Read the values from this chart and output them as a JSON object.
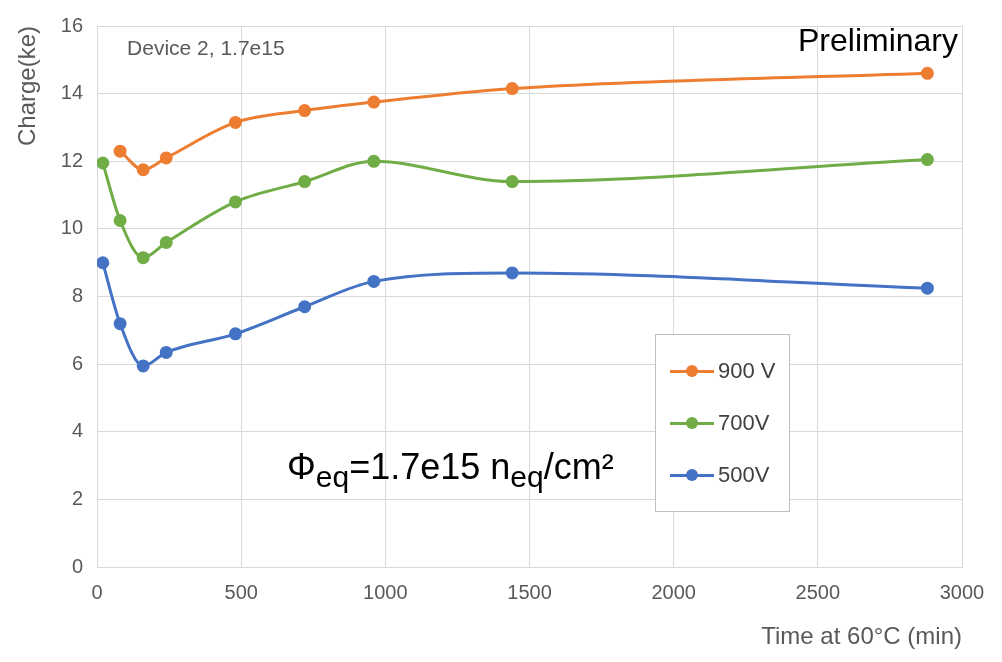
{
  "chart_data": {
    "type": "line",
    "xlabel": "Time at 60°C (min)",
    "ylabel": "Charge(ke)",
    "annotations": [
      "Device 2, 1.7e15",
      "Preliminary",
      "Φ$_{eq}$=1.7e15 n$_{eq}$/cm²"
    ],
    "xlim": [
      0,
      3000
    ],
    "xticks": [
      0,
      500,
      1000,
      1500,
      2000,
      2500,
      3000
    ],
    "ylim": [
      0,
      16
    ],
    "yticks": [
      0,
      2,
      4,
      6,
      8,
      10,
      12,
      14,
      16
    ],
    "grid": true,
    "legend": "right",
    "marker": "circle",
    "line_style": "solid",
    "series": [
      {
        "name": "900 V",
        "color": "#ed7d31",
        "x": [
          80,
          160,
          240,
          480,
          720,
          960,
          1440,
          2880
        ],
        "values": [
          12.3,
          11.75,
          12.1,
          13.15,
          13.5,
          13.75,
          14.15,
          14.6
        ]
      },
      {
        "name": "700V",
        "color": "#70ad47",
        "x": [
          20,
          80,
          160,
          240,
          480,
          720,
          960,
          1440,
          2880
        ],
        "values": [
          11.95,
          10.25,
          9.15,
          9.6,
          10.8,
          11.4,
          12,
          11.4,
          12.05
        ]
      },
      {
        "name": "500V",
        "color": "#4472c4",
        "x": [
          20,
          80,
          160,
          240,
          480,
          720,
          960,
          1440,
          2880
        ],
        "values": [
          9,
          7.2,
          5.95,
          6.35,
          6.9,
          7.7,
          8.45,
          8.7,
          8.25
        ]
      }
    ]
  }
}
